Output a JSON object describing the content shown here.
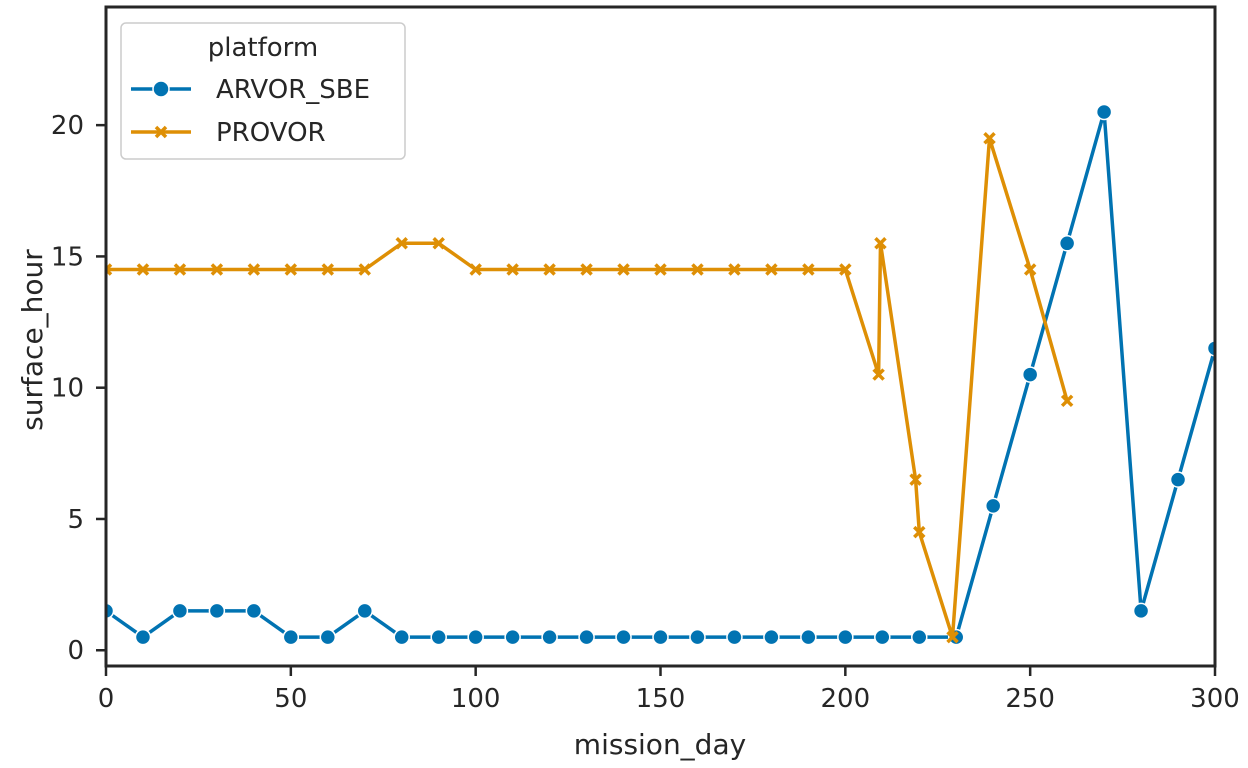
{
  "chart_data": {
    "type": "line",
    "xlabel": "mission_day",
    "ylabel": "surface_hour",
    "xlim": [
      0,
      300
    ],
    "ylim": [
      -0.6,
      24.5
    ],
    "xticks": [
      0,
      50,
      100,
      150,
      200,
      250,
      300
    ],
    "yticks": [
      0,
      5,
      10,
      15,
      20
    ],
    "grid": false,
    "legend": {
      "title": "platform",
      "placement": "top-left"
    },
    "series": [
      {
        "name": "ARVOR_SBE",
        "color": "#0173b2",
        "marker": "circle",
        "x": [
          0,
          10,
          20,
          30,
          40,
          50,
          60,
          70,
          80,
          90,
          100,
          110,
          120,
          130,
          140,
          150,
          160,
          170,
          180,
          190,
          200,
          210,
          220,
          230,
          240,
          250,
          260,
          270,
          280,
          290,
          300
        ],
        "y": [
          1.5,
          0.5,
          1.5,
          1.5,
          1.5,
          0.5,
          0.5,
          1.5,
          0.5,
          0.5,
          0.5,
          0.5,
          0.5,
          0.5,
          0.5,
          0.5,
          0.5,
          0.5,
          0.5,
          0.5,
          0.5,
          0.5,
          0.5,
          0.5,
          5.5,
          10.5,
          15.5,
          20.5,
          1.5,
          6.5,
          11.5
        ]
      },
      {
        "name": "PROVOR",
        "color": "#de8f05",
        "marker": "x",
        "x": [
          0,
          10,
          20,
          30,
          40,
          50,
          60,
          70,
          80,
          90,
          100,
          110,
          120,
          130,
          140,
          150,
          160,
          170,
          180,
          190,
          200,
          209,
          209.5,
          219,
          220,
          229,
          239,
          250,
          260
        ],
        "y": [
          14.5,
          14.5,
          14.5,
          14.5,
          14.5,
          14.5,
          14.5,
          14.5,
          15.5,
          15.5,
          14.5,
          14.5,
          14.5,
          14.5,
          14.5,
          14.5,
          14.5,
          14.5,
          14.5,
          14.5,
          14.5,
          10.5,
          15.5,
          6.5,
          4.5,
          0.5,
          19.5,
          14.5,
          9.5
        ]
      }
    ]
  }
}
